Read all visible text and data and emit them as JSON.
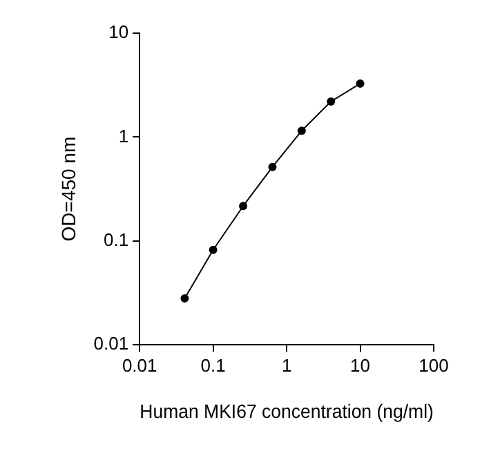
{
  "chart_data": {
    "type": "line",
    "xlabel": "Human MKI67 concentration (ng/ml)",
    "ylabel": "OD=450 nm",
    "x": [
      0.041,
      0.1,
      0.256,
      0.64,
      1.6,
      4,
      10
    ],
    "series": [
      {
        "color": "#000000",
        "values": [
          0.028,
          0.082,
          0.217,
          0.515,
          1.15,
          2.2,
          3.27
        ]
      }
    ],
    "log": "xy",
    "xlim": [
      0.01,
      100
    ],
    "ylim": [
      0.01,
      10
    ],
    "xticks": [
      0.01,
      0.1,
      1,
      10,
      100
    ],
    "yticks": [
      0.01,
      0.1,
      1,
      10
    ],
    "grid": false,
    "legend": false,
    "marker": "circle",
    "line_style": "solid"
  }
}
